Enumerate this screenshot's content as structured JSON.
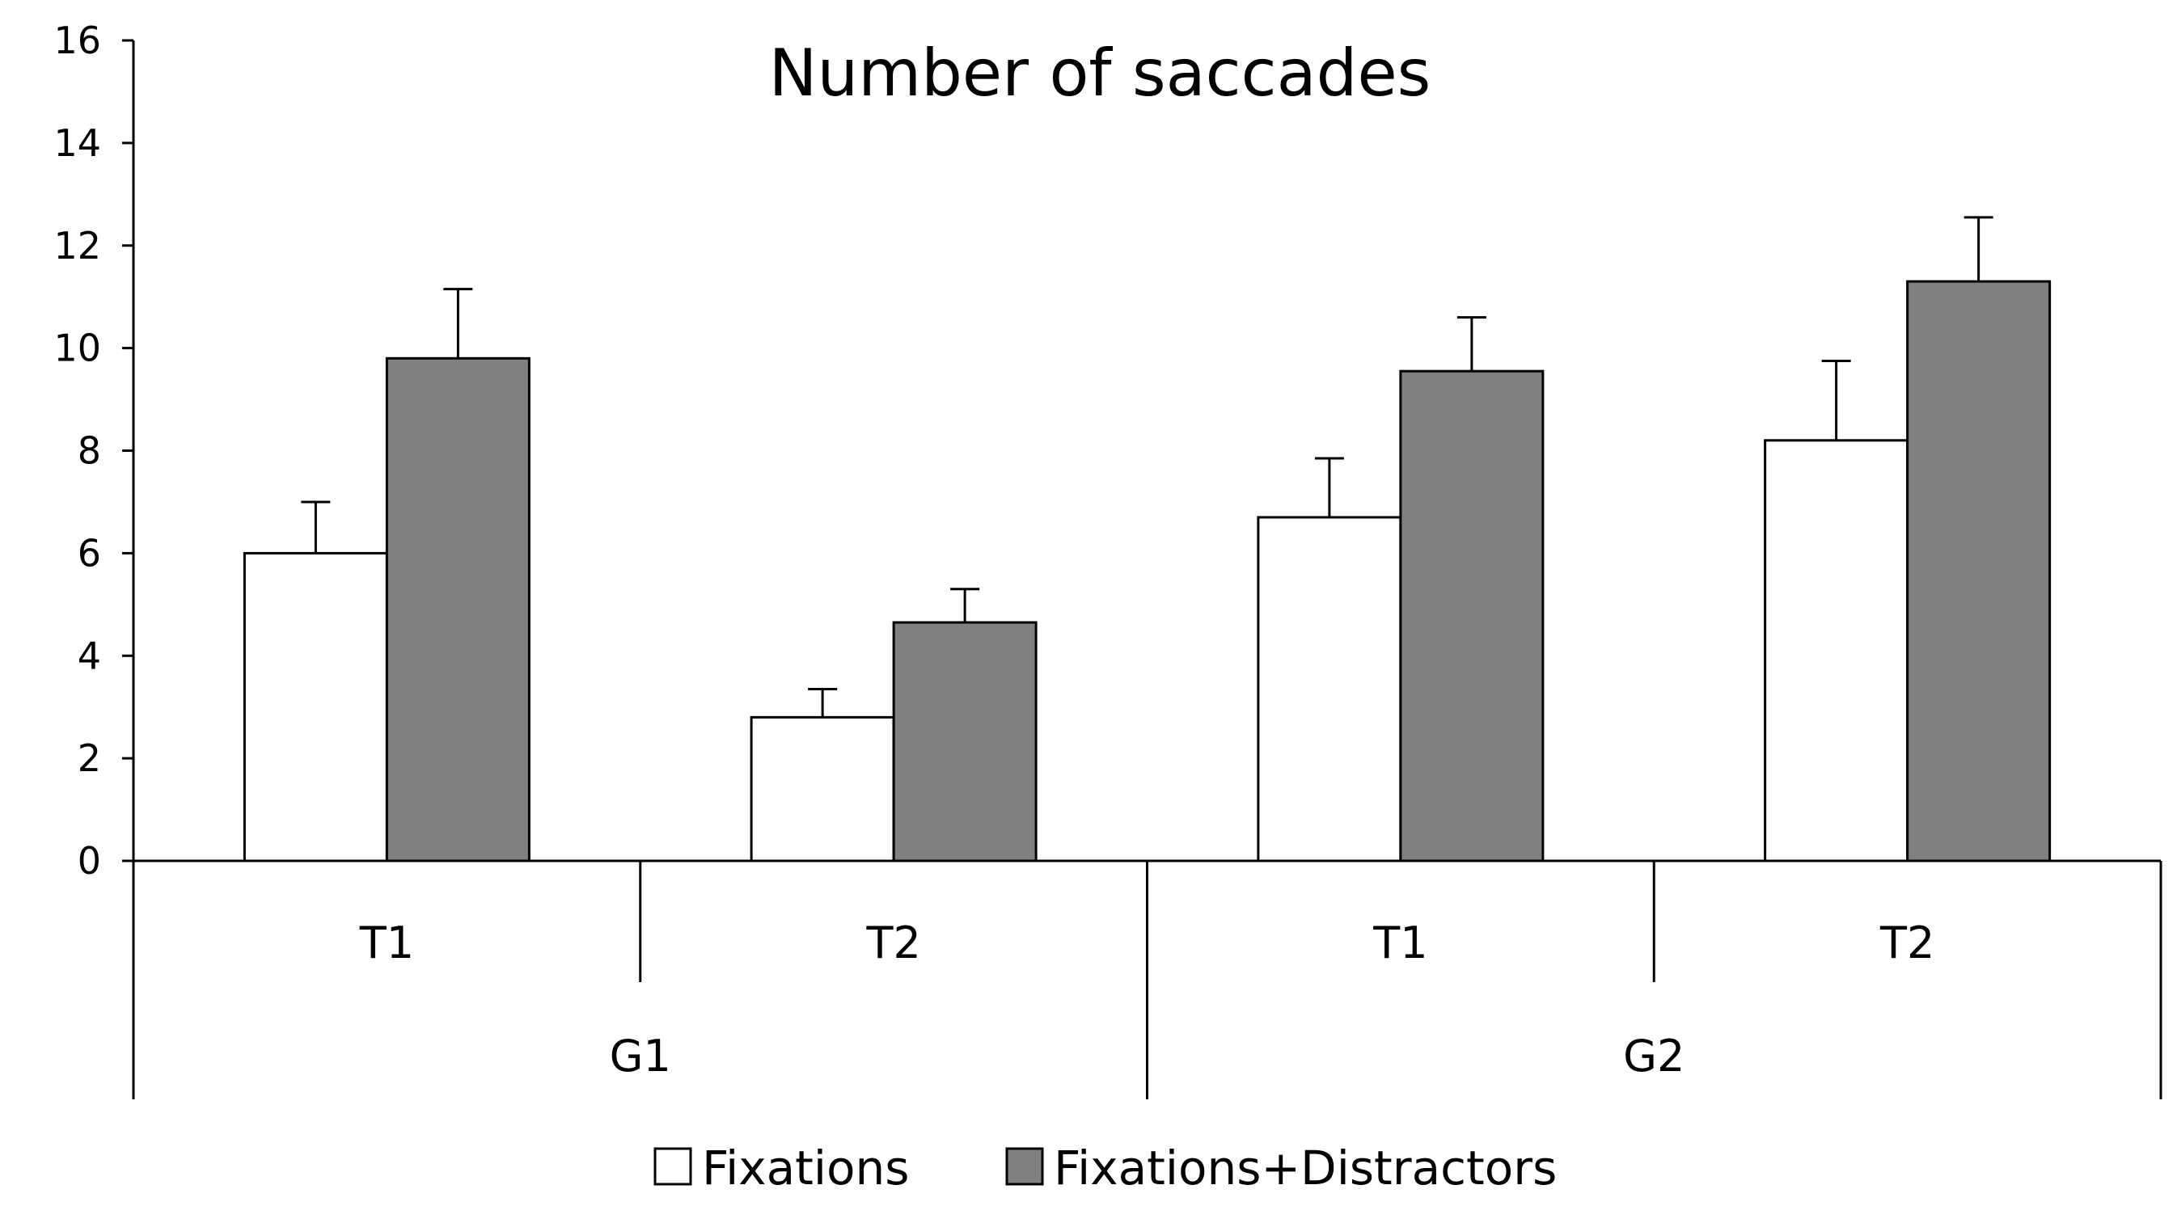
{
  "chart_data": {
    "type": "bar",
    "title": "Number of saccades",
    "xlabel": "",
    "ylabel": "",
    "ylim": [
      0,
      16
    ],
    "yticks": [
      0,
      2,
      4,
      6,
      8,
      10,
      12,
      14,
      16
    ],
    "grid": false,
    "legend_position": "bottom",
    "groups": [
      "G1",
      "G2"
    ],
    "categories": [
      "T1",
      "T2",
      "T1",
      "T2"
    ],
    "category_groups": [
      "G1",
      "G1",
      "G2",
      "G2"
    ],
    "series": [
      {
        "name": "Fixations",
        "color": "#ffffff",
        "values": [
          6.0,
          2.8,
          6.7,
          8.2
        ],
        "errors": [
          1.0,
          0.55,
          1.15,
          1.55
        ]
      },
      {
        "name": "Fixations+Distractors",
        "color": "#808080",
        "values": [
          9.8,
          4.65,
          9.55,
          11.3
        ],
        "errors": [
          1.35,
          0.65,
          1.05,
          1.25
        ]
      }
    ]
  }
}
